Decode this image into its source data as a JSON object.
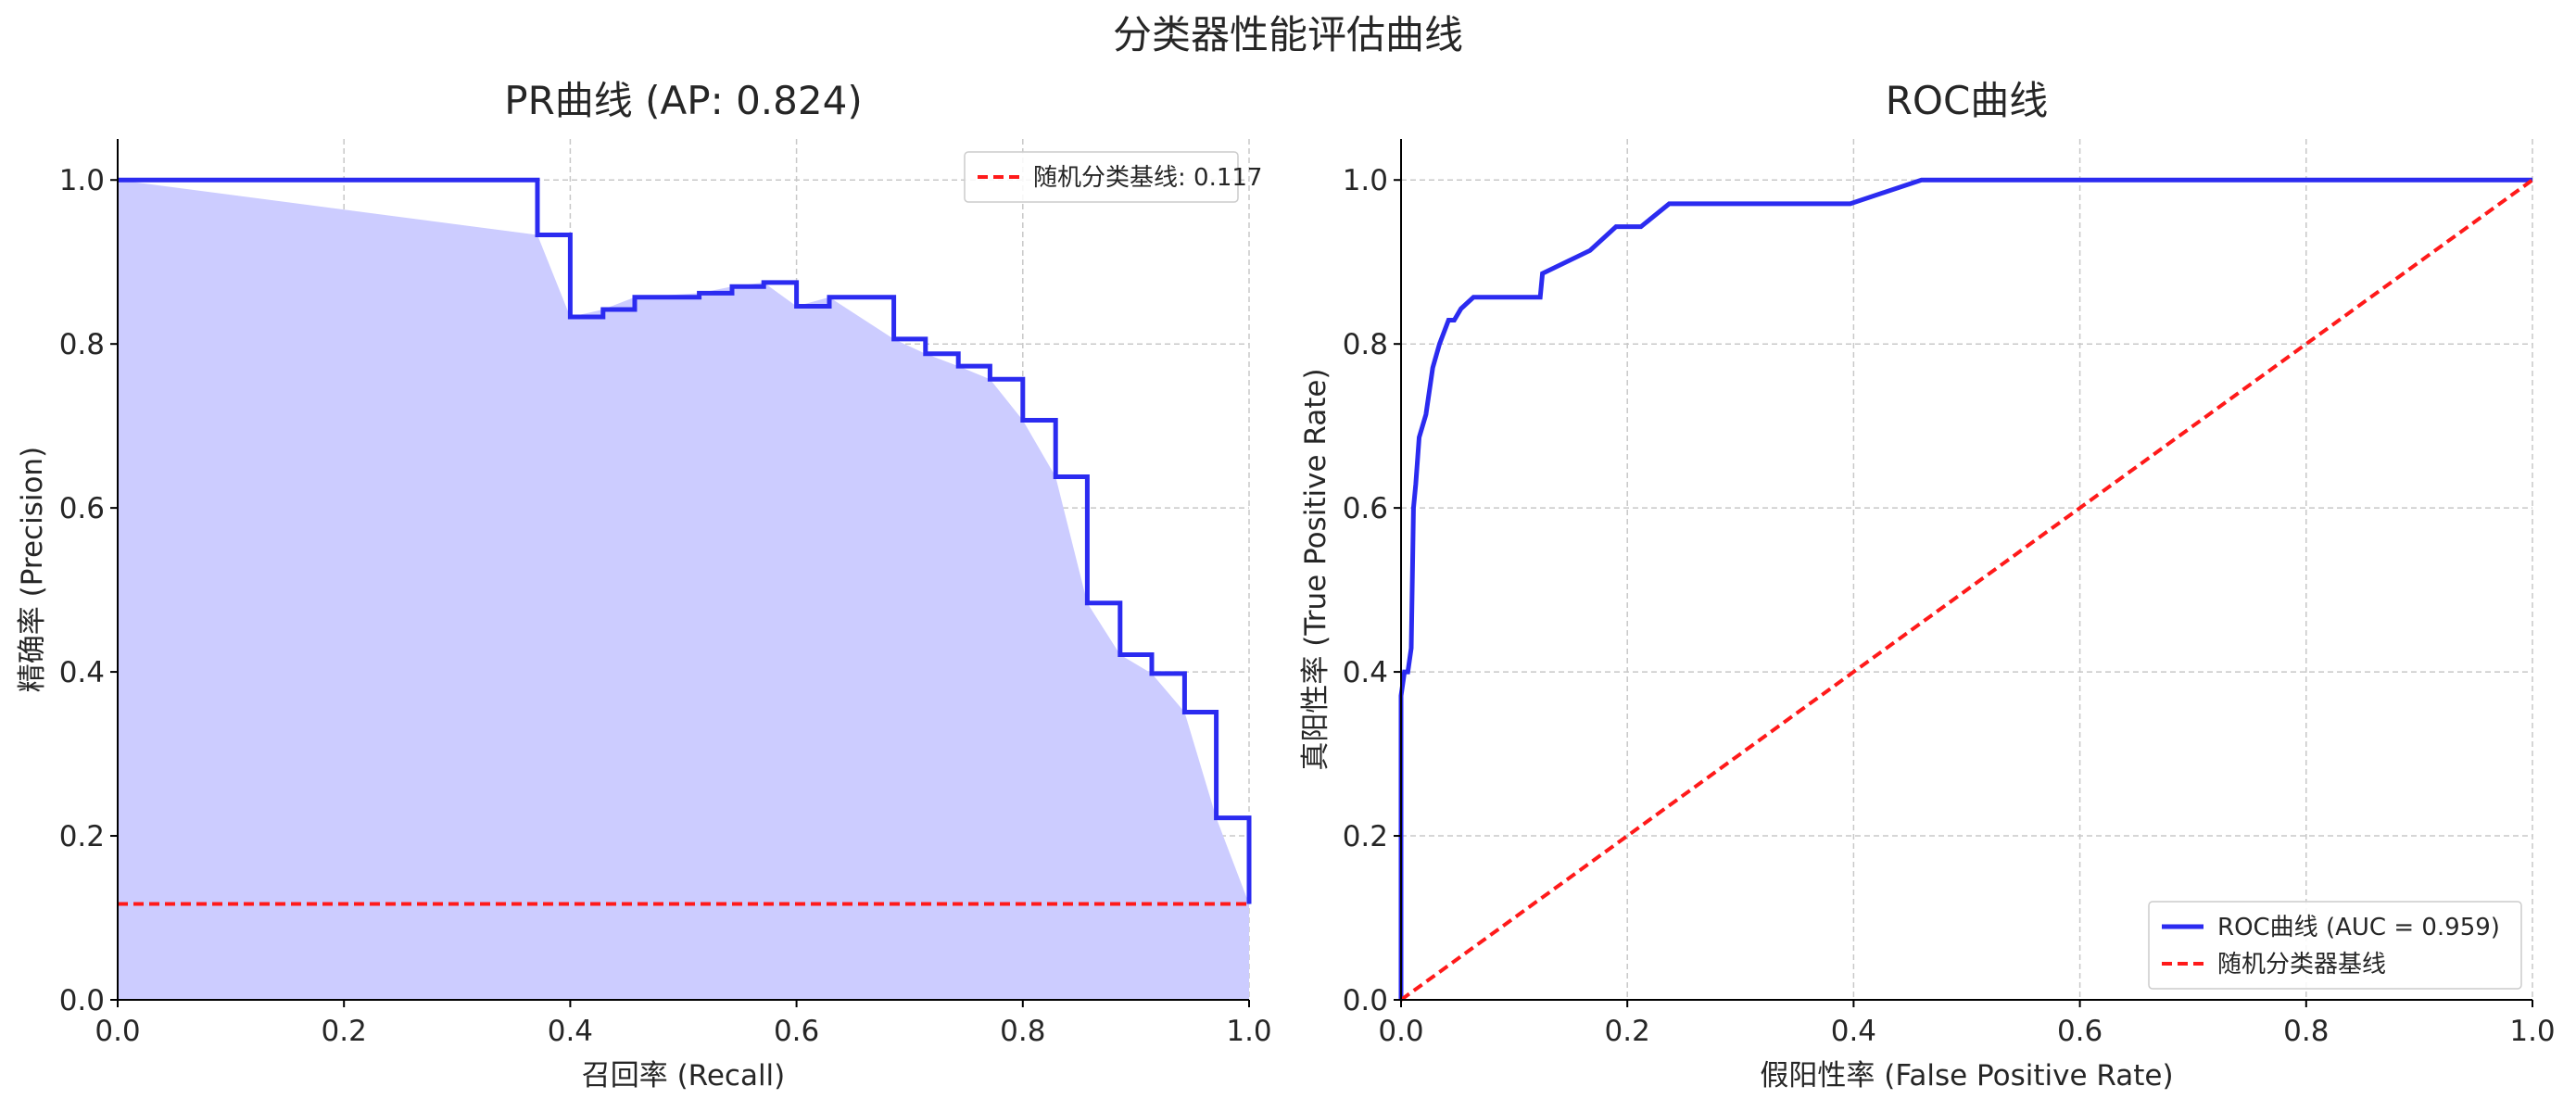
{
  "figure": {
    "suptitle": "分类器性能评估曲线"
  },
  "colors": {
    "curve": "#2b2bf0",
    "fill": "#ccccff",
    "baseline": "#ff1a1a",
    "grid": "#c8c8c8",
    "axis": "#000000"
  },
  "chart_data": [
    {
      "type": "line",
      "title": "PR曲线 (AP: 0.824)",
      "xlabel": "召回率 (Recall)",
      "ylabel": "精确率 (Precision)",
      "xlim": [
        0.0,
        1.0
      ],
      "ylim": [
        0.0,
        1.05
      ],
      "xticks": [
        "0.0",
        "0.2",
        "0.4",
        "0.6",
        "0.8",
        "1.0"
      ],
      "yticks": [
        "0.0",
        "0.2",
        "0.4",
        "0.6",
        "0.8",
        "1.0"
      ],
      "grid": true,
      "legend_position": "top-right",
      "draw": "step-post",
      "fill_under": true,
      "series": [
        {
          "x": [
            0.0,
            0.371,
            0.4,
            0.429,
            0.457,
            0.514,
            0.543,
            0.571,
            0.6,
            0.629,
            0.686,
            0.714,
            0.743,
            0.771,
            0.8,
            0.829,
            0.857,
            0.886,
            0.914,
            0.943,
            0.971,
            1.0
          ],
          "y": [
            1.0,
            0.933,
            0.833,
            0.842,
            0.857,
            0.862,
            0.87,
            0.875,
            0.846,
            0.857,
            0.806,
            0.788,
            0.773,
            0.757,
            0.707,
            0.638,
            0.484,
            0.421,
            0.398,
            0.351,
            0.222,
            0.117
          ]
        },
        {
          "name": "随机分类基线: 0.117",
          "style": "dashed",
          "x": [
            0.0,
            1.0
          ],
          "y": [
            0.117,
            0.117
          ]
        }
      ]
    },
    {
      "type": "line",
      "title": "ROC曲线",
      "xlabel": "假阳性率 (False Positive Rate)",
      "ylabel": "真阳性率 (True Positive Rate)",
      "xlim": [
        0.0,
        1.0
      ],
      "ylim": [
        0.0,
        1.05
      ],
      "xticks": [
        "0.0",
        "0.2",
        "0.4",
        "0.6",
        "0.8",
        "1.0"
      ],
      "yticks": [
        "0.0",
        "0.2",
        "0.4",
        "0.6",
        "0.8",
        "1.0"
      ],
      "grid": true,
      "legend_position": "bottom-right",
      "series": [
        {
          "name": "ROC曲线 (AUC = 0.959)",
          "x": [
            0.0,
            0.0,
            0.003,
            0.006,
            0.009,
            0.011,
            0.013,
            0.016,
            0.022,
            0.028,
            0.034,
            0.042,
            0.047,
            0.053,
            0.064,
            0.123,
            0.125,
            0.167,
            0.19,
            0.212,
            0.237,
            0.397,
            0.46,
            1.0
          ],
          "y": [
            0.0,
            0.371,
            0.4,
            0.4,
            0.429,
            0.6,
            0.629,
            0.686,
            0.714,
            0.771,
            0.8,
            0.829,
            0.829,
            0.843,
            0.857,
            0.857,
            0.886,
            0.914,
            0.943,
            0.943,
            0.971,
            0.971,
            1.0,
            1.0
          ]
        },
        {
          "name": "随机分类器基线",
          "style": "dashed",
          "x": [
            0.0,
            1.0
          ],
          "y": [
            0.0,
            1.0
          ]
        }
      ]
    }
  ]
}
